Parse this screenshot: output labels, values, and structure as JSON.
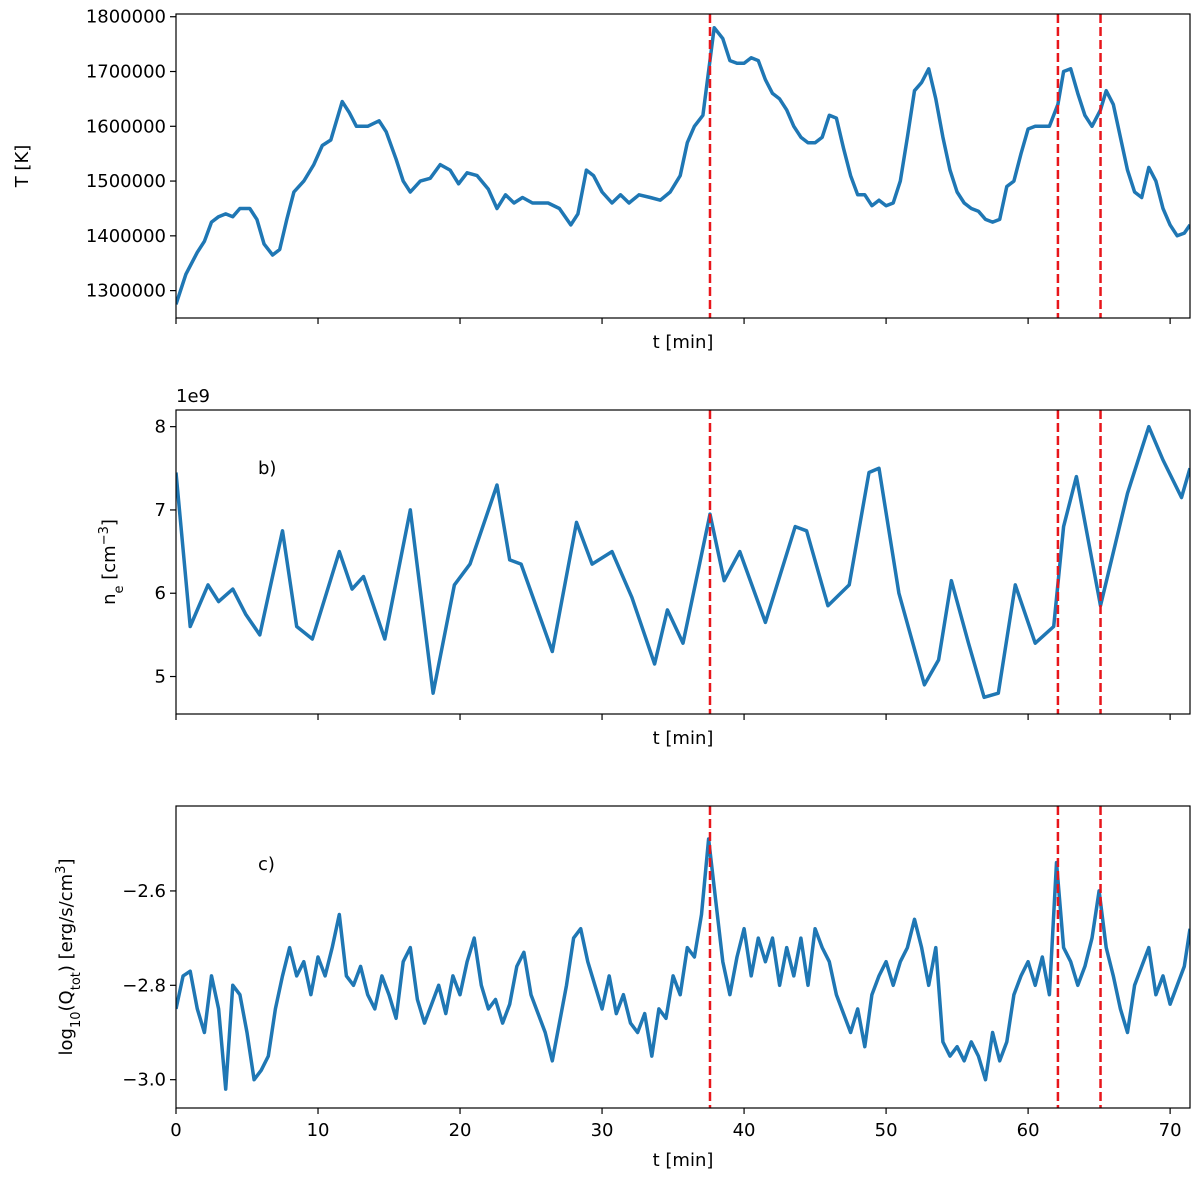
{
  "chart_data": [
    {
      "type": "line",
      "ylabel": [
        "T [K]"
      ],
      "xlabel": "t [min]",
      "xticklabels": false,
      "xlim": [
        0,
        71.4
      ],
      "ylim": [
        1250000,
        1805000
      ],
      "xticks": [
        0,
        10,
        20,
        30,
        40,
        50,
        60,
        70
      ],
      "yticks": [
        1300000,
        1400000,
        1500000,
        1600000,
        1700000,
        1800000
      ],
      "vlines": [
        37.6,
        62.1,
        65.1
      ],
      "vline_color": "#e8161b",
      "x": [
        0,
        0.7,
        1.5,
        2,
        2.5,
        3,
        3.5,
        4,
        4.5,
        5.2,
        5.7,
        6.2,
        6.8,
        7.3,
        7.8,
        8.3,
        9,
        9.7,
        10.3,
        10.9,
        11.7,
        12.2,
        12.7,
        13.5,
        14.3,
        14.8,
        15.5,
        16,
        16.5,
        17.2,
        17.9,
        18.6,
        19.3,
        19.9,
        20.5,
        21.2,
        22,
        22.6,
        23.2,
        23.8,
        24.4,
        25.1,
        26.2,
        27,
        27.8,
        28.3,
        28.9,
        29.4,
        30,
        30.7,
        31.3,
        31.9,
        32.6,
        33.4,
        34.1,
        34.8,
        35.5,
        36,
        36.5,
        37.1,
        37.9,
        38.5,
        39,
        39.5,
        40,
        40.5,
        41,
        41.5,
        42,
        42.5,
        43,
        43.5,
        44,
        44.5,
        45,
        45.5,
        46,
        46.5,
        47,
        47.5,
        48,
        48.5,
        49,
        49.5,
        50,
        50.5,
        51,
        51.5,
        52,
        52.5,
        53,
        53.5,
        54,
        54.5,
        55,
        55.5,
        56,
        56.5,
        57,
        57.5,
        58,
        58.5,
        59,
        59.5,
        60,
        60.5,
        61,
        61.5,
        62.1,
        62.5,
        63,
        63.5,
        64,
        64.5,
        65.1,
        65.5,
        66,
        66.5,
        67,
        67.5,
        68,
        68.5,
        69,
        69.5,
        70,
        70.5,
        71,
        71.4
      ],
      "series": [
        {
          "color": "#1f77b4",
          "values": [
            1275000,
            1330000,
            1370000,
            1390000,
            1425000,
            1435000,
            1440000,
            1435000,
            1450000,
            1450000,
            1430000,
            1385000,
            1365000,
            1375000,
            1430000,
            1480000,
            1500000,
            1530000,
            1565000,
            1575000,
            1645000,
            1625000,
            1600000,
            1600000,
            1610000,
            1590000,
            1540000,
            1500000,
            1480000,
            1500000,
            1505000,
            1530000,
            1520000,
            1495000,
            1515000,
            1510000,
            1485000,
            1450000,
            1475000,
            1460000,
            1470000,
            1460000,
            1460000,
            1450000,
            1420000,
            1440000,
            1520000,
            1510000,
            1480000,
            1460000,
            1475000,
            1460000,
            1475000,
            1470000,
            1465000,
            1480000,
            1510000,
            1570000,
            1600000,
            1620000,
            1780000,
            1760000,
            1720000,
            1715000,
            1715000,
            1725000,
            1720000,
            1685000,
            1660000,
            1650000,
            1630000,
            1600000,
            1580000,
            1570000,
            1570000,
            1580000,
            1620000,
            1615000,
            1560000,
            1510000,
            1475000,
            1475000,
            1455000,
            1465000,
            1455000,
            1460000,
            1500000,
            1580000,
            1665000,
            1680000,
            1705000,
            1650000,
            1580000,
            1520000,
            1480000,
            1460000,
            1450000,
            1445000,
            1430000,
            1425000,
            1430000,
            1490000,
            1500000,
            1550000,
            1595000,
            1600000,
            1600000,
            1600000,
            1640000,
            1700000,
            1705000,
            1660000,
            1620000,
            1600000,
            1630000,
            1665000,
            1640000,
            1580000,
            1520000,
            1480000,
            1470000,
            1525000,
            1500000,
            1450000,
            1420000,
            1400000,
            1405000,
            1420000
          ]
        }
      ]
    },
    {
      "type": "line",
      "ylabel": [
        "n",
        "e",
        " [cm",
        "−3",
        "]"
      ],
      "xlabel": "t [min]",
      "xticklabels": false,
      "offset_text": "1e9",
      "panel_label": "b)",
      "xlim": [
        0,
        71.4
      ],
      "ylim": [
        4.55,
        8.2
      ],
      "xticks": [
        0,
        10,
        20,
        30,
        40,
        50,
        60,
        70
      ],
      "yticks": [
        5,
        6,
        7,
        8
      ],
      "vlines": [
        37.6,
        62.1,
        65.1
      ],
      "vline_color": "#e8161b",
      "x": [
        0,
        1,
        2.25,
        3,
        4,
        4.9,
        5.9,
        7.5,
        8.5,
        9.6,
        11.5,
        12.4,
        13.2,
        14.7,
        16.5,
        18.1,
        19.6,
        20.7,
        22.6,
        23.5,
        24.3,
        26.5,
        28.2,
        29.3,
        30.7,
        32.1,
        33.7,
        34.6,
        35.7,
        37.6,
        38.6,
        39.7,
        41.5,
        43.6,
        44.4,
        45.9,
        47.4,
        48.8,
        49.5,
        50.9,
        52.7,
        53.7,
        54.6,
        55.8,
        56.9,
        57.9,
        59.1,
        60.5,
        61.8,
        62.5,
        63.4,
        65.1,
        67,
        68.5,
        69.5,
        70.8,
        71.4
      ],
      "series": [
        {
          "color": "#1f77b4",
          "values": [
            7.45,
            5.6,
            6.1,
            5.9,
            6.05,
            5.75,
            5.5,
            6.75,
            5.6,
            5.45,
            6.5,
            6.05,
            6.2,
            5.45,
            7.0,
            4.8,
            6.1,
            6.35,
            7.3,
            6.4,
            6.35,
            5.3,
            6.85,
            6.35,
            6.5,
            5.95,
            5.15,
            5.8,
            5.4,
            6.95,
            6.15,
            6.5,
            5.65,
            6.8,
            6.75,
            5.85,
            6.1,
            7.45,
            7.5,
            6.0,
            4.9,
            5.2,
            6.15,
            5.4,
            4.75,
            4.8,
            6.1,
            5.4,
            5.6,
            6.8,
            7.4,
            5.85,
            7.2,
            8.0,
            7.6,
            7.15,
            7.5
          ]
        }
      ]
    },
    {
      "type": "line",
      "ylabel": [
        "log",
        "10",
        "(Q",
        "tot",
        ") [erg/s/cm",
        "3",
        "]"
      ],
      "xlabel": "t [min]",
      "xticklabels": true,
      "panel_label": "c)",
      "xlim": [
        0,
        71.4
      ],
      "ylim": [
        -3.06,
        -2.42
      ],
      "xticks": [
        0,
        10,
        20,
        30,
        40,
        50,
        60,
        70
      ],
      "yticks": [
        {
          "value": -3.0,
          "label": "−3.0"
        },
        {
          "value": -2.8,
          "label": "−2.8"
        },
        {
          "value": -2.6,
          "label": "−2.6"
        }
      ],
      "vlines": [
        37.6,
        62.1,
        65.1
      ],
      "vline_color": "#e8161b",
      "x": [
        0,
        0.5,
        1,
        1.5,
        2,
        2.5,
        3,
        3.5,
        4,
        4.5,
        5,
        5.5,
        6,
        6.5,
        7,
        7.5,
        8,
        8.5,
        9,
        9.5,
        10,
        10.5,
        11,
        11.5,
        12,
        12.5,
        13,
        13.5,
        14,
        14.5,
        15,
        15.5,
        16,
        16.5,
        17,
        17.5,
        18,
        18.5,
        19,
        19.5,
        20,
        20.5,
        21,
        21.5,
        22,
        22.5,
        23,
        23.5,
        24,
        24.5,
        25,
        25.5,
        26,
        26.5,
        27,
        27.5,
        28,
        28.5,
        29,
        29.5,
        30,
        30.5,
        31,
        31.5,
        32,
        32.5,
        33,
        33.5,
        34,
        34.5,
        35,
        35.5,
        36,
        36.5,
        37,
        37.5,
        38,
        38.5,
        39,
        39.5,
        40,
        40.5,
        41,
        41.5,
        42,
        42.5,
        43,
        43.5,
        44,
        44.5,
        45,
        45.5,
        46,
        46.5,
        47,
        47.5,
        48,
        48.5,
        49,
        49.5,
        50,
        50.5,
        51,
        51.5,
        52,
        52.5,
        53,
        53.5,
        54,
        54.5,
        55,
        55.5,
        56,
        56.5,
        57,
        57.5,
        58,
        58.5,
        59,
        59.5,
        60,
        60.5,
        61,
        61.5,
        62,
        62.5,
        63,
        63.5,
        64,
        64.5,
        65,
        65.5,
        66,
        66.5,
        67,
        67.5,
        68,
        68.5,
        69,
        69.5,
        70,
        70.5,
        71,
        71.4
      ],
      "series": [
        {
          "color": "#1f77b4",
          "values": [
            -2.85,
            -2.78,
            -2.77,
            -2.85,
            -2.9,
            -2.78,
            -2.85,
            -3.02,
            -2.8,
            -2.82,
            -2.9,
            -3.0,
            -2.98,
            -2.95,
            -2.85,
            -2.78,
            -2.72,
            -2.78,
            -2.75,
            -2.82,
            -2.74,
            -2.78,
            -2.72,
            -2.65,
            -2.78,
            -2.8,
            -2.76,
            -2.82,
            -2.85,
            -2.78,
            -2.82,
            -2.87,
            -2.75,
            -2.72,
            -2.83,
            -2.88,
            -2.84,
            -2.8,
            -2.86,
            -2.78,
            -2.82,
            -2.75,
            -2.7,
            -2.8,
            -2.85,
            -2.83,
            -2.88,
            -2.84,
            -2.76,
            -2.73,
            -2.82,
            -2.86,
            -2.9,
            -2.96,
            -2.88,
            -2.8,
            -2.7,
            -2.68,
            -2.75,
            -2.8,
            -2.85,
            -2.78,
            -2.86,
            -2.82,
            -2.88,
            -2.9,
            -2.86,
            -2.95,
            -2.85,
            -2.87,
            -2.78,
            -2.82,
            -2.72,
            -2.74,
            -2.65,
            -2.49,
            -2.62,
            -2.75,
            -2.82,
            -2.74,
            -2.68,
            -2.78,
            -2.7,
            -2.75,
            -2.7,
            -2.8,
            -2.72,
            -2.78,
            -2.7,
            -2.8,
            -2.68,
            -2.72,
            -2.75,
            -2.82,
            -2.86,
            -2.9,
            -2.85,
            -2.93,
            -2.82,
            -2.78,
            -2.75,
            -2.8,
            -2.75,
            -2.72,
            -2.66,
            -2.72,
            -2.8,
            -2.72,
            -2.92,
            -2.95,
            -2.93,
            -2.96,
            -2.92,
            -2.95,
            -3.0,
            -2.9,
            -2.96,
            -2.92,
            -2.82,
            -2.78,
            -2.75,
            -2.8,
            -2.74,
            -2.82,
            -2.54,
            -2.72,
            -2.75,
            -2.8,
            -2.76,
            -2.7,
            -2.6,
            -2.72,
            -2.78,
            -2.85,
            -2.9,
            -2.8,
            -2.76,
            -2.72,
            -2.82,
            -2.78,
            -2.84,
            -2.8,
            -2.76,
            -2.68
          ]
        }
      ]
    }
  ]
}
